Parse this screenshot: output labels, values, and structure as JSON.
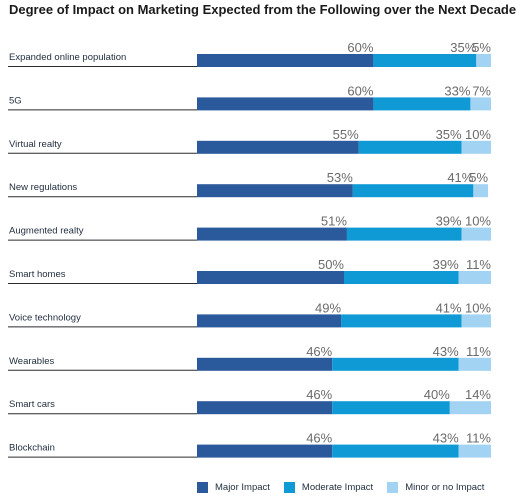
{
  "chart_data": {
    "type": "bar",
    "orientation": "horizontal",
    "stacked": true,
    "title": "Degree of Impact on Marketing Expected from the Following over the Next Decade",
    "categories": [
      "Expanded online population",
      "5G",
      "Virtual realty",
      "New regulations",
      "Augmented realty",
      "Smart homes",
      "Voice technology",
      "Wearables",
      "Smart cars",
      "Blockchain"
    ],
    "series": [
      {
        "name": "Major Impact",
        "color": "#2a5a9c",
        "values": [
          60,
          60,
          55,
          53,
          51,
          50,
          49,
          46,
          46,
          46
        ]
      },
      {
        "name": "Moderate Impact",
        "color": "#0f9ad6",
        "values": [
          35,
          33,
          35,
          41,
          39,
          39,
          41,
          43,
          40,
          43
        ]
      },
      {
        "name": "Minor or no Impact",
        "color": "#a3d3f2",
        "values": [
          5,
          7,
          10,
          5,
          10,
          11,
          10,
          11,
          14,
          11
        ]
      }
    ],
    "value_format": "{v}%",
    "legend": "bottom",
    "grid": false
  }
}
